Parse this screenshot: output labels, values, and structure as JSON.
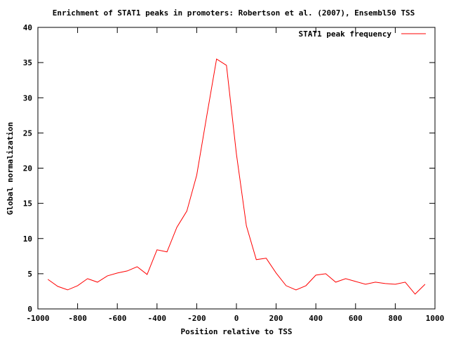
{
  "chart_data": {
    "type": "line",
    "title": "Enrichment of STAT1 peaks in promoters: Robertson et al. (2007), Ensembl50 TSS",
    "xlabel": "Position relative to TSS",
    "ylabel": "Global normalization",
    "xlim": [
      -1000,
      1000
    ],
    "ylim": [
      0,
      40
    ],
    "xticks": [
      -1000,
      -800,
      -600,
      -400,
      -200,
      0,
      200,
      400,
      600,
      800,
      1000
    ],
    "yticks": [
      0,
      5,
      10,
      15,
      20,
      25,
      30,
      35,
      40
    ],
    "grid": false,
    "legend_position": "top-right",
    "series": [
      {
        "name": "STAT1 peak frequency",
        "color": "#ff0000",
        "x": [
          -950,
          -900,
          -850,
          -800,
          -750,
          -700,
          -650,
          -600,
          -550,
          -500,
          -450,
          -400,
          -350,
          -300,
          -250,
          -200,
          -150,
          -100,
          -50,
          0,
          50,
          100,
          150,
          200,
          250,
          300,
          350,
          400,
          450,
          500,
          550,
          600,
          650,
          700,
          750,
          800,
          850,
          900,
          950
        ],
        "y": [
          4.2,
          3.2,
          2.7,
          3.3,
          4.3,
          3.8,
          4.7,
          5.1,
          5.4,
          6.0,
          4.9,
          8.4,
          8.1,
          11.6,
          13.9,
          19.0,
          27.3,
          35.5,
          34.6,
          22.0,
          11.8,
          7.0,
          7.2,
          5.1,
          3.3,
          2.7,
          3.3,
          4.8,
          5.0,
          3.8,
          4.3,
          3.9,
          3.5,
          3.8,
          3.6,
          3.5,
          3.8,
          2.1,
          3.5
        ]
      }
    ]
  }
}
